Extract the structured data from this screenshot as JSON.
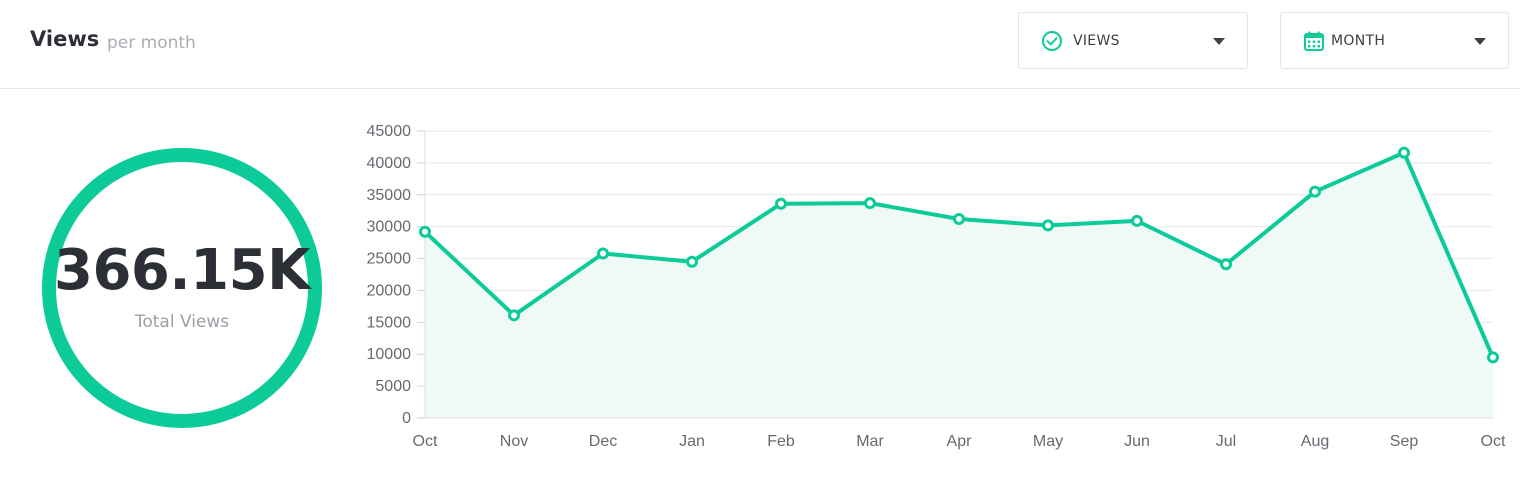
{
  "header": {
    "title": "Views",
    "subtitle": "per month"
  },
  "dropdowns": {
    "metric": {
      "label": "VIEWS",
      "icon": "check-circle-icon"
    },
    "period": {
      "label": "MONTH",
      "icon": "calendar-icon"
    }
  },
  "summary": {
    "total_value": "366.15K",
    "total_label": "Total Views"
  },
  "colors": {
    "accent": "#0ccb98",
    "area_fill": "#effaf6",
    "grid": "#e8e9eb",
    "text_dark": "#2c2f36",
    "text_muted": "#9a9ea5"
  },
  "chart_data": {
    "type": "area",
    "categories": [
      "Oct",
      "Nov",
      "Dec",
      "Jan",
      "Feb",
      "Mar",
      "Apr",
      "May",
      "Jun",
      "Jul",
      "Aug",
      "Sep",
      "Oct"
    ],
    "series": [
      {
        "values": [
          29200,
          16100,
          25800,
          24500,
          33600,
          33700,
          31200,
          30200,
          30900,
          24100,
          35500,
          41600,
          9500
        ]
      }
    ],
    "title": "",
    "xlabel": "",
    "ylabel": "",
    "ylim": [
      0,
      45000
    ],
    "yticks": [
      0,
      5000,
      10000,
      15000,
      20000,
      25000,
      30000,
      35000,
      40000,
      45000
    ],
    "grid": true,
    "legend": "none"
  }
}
